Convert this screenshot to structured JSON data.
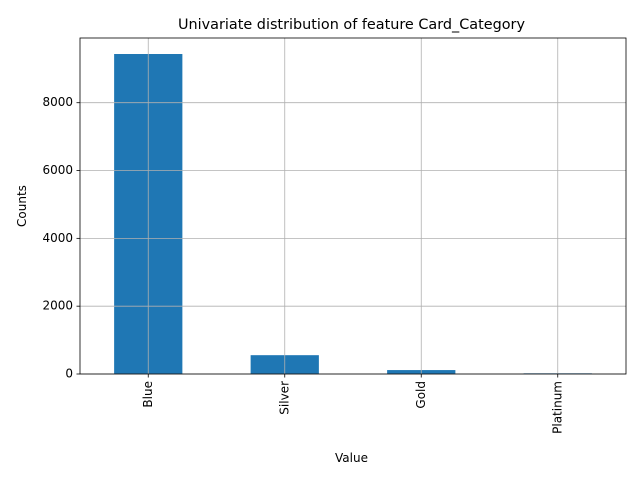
{
  "chart_data": {
    "type": "bar",
    "title": "Univariate distribution of feature Card_Category",
    "xlabel": "Value",
    "ylabel": "Counts",
    "categories": [
      "Blue",
      "Silver",
      "Gold",
      "Platinum"
    ],
    "values": [
      9436,
      555,
      116,
      20
    ],
    "ylim": [
      0,
      9908
    ],
    "yticks": [
      0,
      2000,
      4000,
      6000,
      8000
    ],
    "grid": true,
    "legend": "none",
    "colors": {
      "bar": "#1f77b4",
      "grid": "#b0b0b0",
      "axis": "#000000",
      "background": "#ffffff"
    }
  }
}
